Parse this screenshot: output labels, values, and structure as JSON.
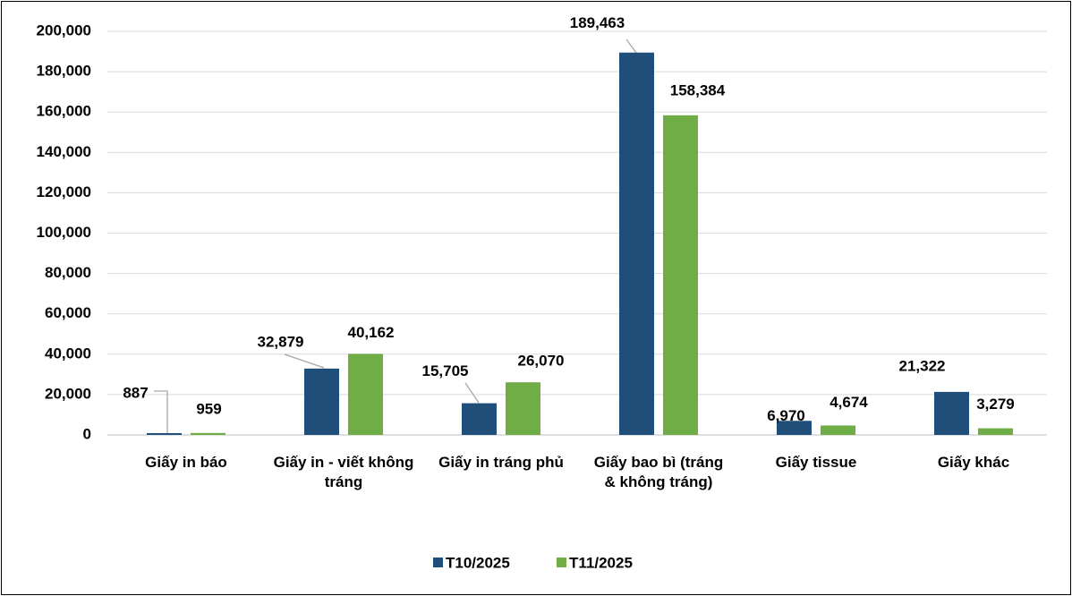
{
  "chart_data": {
    "type": "bar",
    "categories": [
      "Giấy in báo",
      "Giấy in - viết không tráng",
      "Giấy in tráng phủ",
      "Giấy bao bì (tráng & không tráng)",
      "Giấy tissue",
      "Giấy khác"
    ],
    "series": [
      {
        "name": "T10/2025",
        "color": "#1f4e79",
        "values": [
          887,
          32879,
          15705,
          189463,
          6970,
          21322
        ],
        "value_labels": [
          "887",
          "32,879",
          "15,705",
          "189,463",
          "6,970",
          "21,322"
        ]
      },
      {
        "name": "T11/2025",
        "color": "#70ad47",
        "values": [
          959,
          40162,
          26070,
          158384,
          4674,
          3279
        ],
        "value_labels": [
          "959",
          "40,162",
          "26,070",
          "158,384",
          "4,674",
          "3,279"
        ]
      }
    ],
    "ylim": [
      0,
      200000
    ],
    "yticks": [
      0,
      {
        "value": 20000,
        "label": "20,000"
      },
      {
        "value": 40000,
        "label": "40,000"
      },
      {
        "value": 60000,
        "label": "60,000"
      },
      {
        "value": 80000,
        "label": "80,000"
      },
      {
        "value": 100000,
        "label": "100,000"
      },
      {
        "value": 120000,
        "label": "120,000"
      },
      {
        "value": 140000,
        "label": "140,000"
      },
      {
        "value": 160000,
        "label": "160,000"
      },
      {
        "value": 180000,
        "label": "180,000"
      },
      {
        "value": 200000,
        "label": "200,000"
      }
    ],
    "grid": true,
    "legend": "bottom"
  }
}
